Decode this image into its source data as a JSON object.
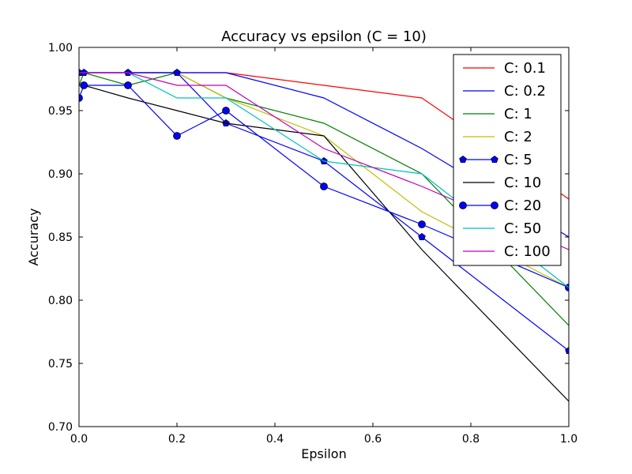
{
  "chart_data": {
    "type": "line",
    "title": "Accuracy vs epsilon (C = 10)",
    "xlabel": "Epsilon",
    "ylabel": "Accuracy",
    "xlim": [
      0.0,
      1.0
    ],
    "ylim": [
      0.7,
      1.0
    ],
    "xticks": [
      "0.0",
      "0.2",
      "0.4",
      "0.6",
      "0.8",
      "1.0"
    ],
    "yticks": [
      "0.70",
      "0.75",
      "0.80",
      "0.85",
      "0.90",
      "0.95",
      "1.00"
    ],
    "grid": false,
    "legend_position": "top-right",
    "x": [
      0.0,
      0.01,
      0.1,
      0.2,
      0.3,
      0.5,
      0.7,
      1.0
    ],
    "series": [
      {
        "name": "C: 0.1",
        "color": "#ff0000",
        "marker": "none",
        "values": [
          0.98,
          0.98,
          0.98,
          0.98,
          0.98,
          0.97,
          0.96,
          0.88
        ]
      },
      {
        "name": "C: 0.2",
        "color": "#0000ff",
        "marker": "none",
        "values": [
          0.98,
          0.98,
          0.98,
          0.98,
          0.98,
          0.96,
          0.92,
          0.85
        ]
      },
      {
        "name": "C: 1",
        "color": "#008000",
        "marker": "none",
        "values": [
          0.97,
          0.98,
          0.97,
          0.98,
          0.96,
          0.94,
          0.9,
          0.78
        ]
      },
      {
        "name": "C: 2",
        "color": "#bfbf00",
        "marker": "none",
        "values": [
          0.98,
          0.98,
          0.98,
          0.98,
          0.96,
          0.93,
          0.87,
          0.81
        ]
      },
      {
        "name": "C: 5",
        "color": "#0000ff",
        "marker": "pentagon",
        "values": [
          0.98,
          0.98,
          0.98,
          0.98,
          0.94,
          0.91,
          0.85,
          0.76
        ]
      },
      {
        "name": "C: 10",
        "color": "#000000",
        "marker": "none",
        "values": [
          0.97,
          0.97,
          0.96,
          0.95,
          0.94,
          0.93,
          0.84,
          0.72
        ]
      },
      {
        "name": "C: 20",
        "color": "#0000ff",
        "marker": "circle",
        "values": [
          0.96,
          0.97,
          0.97,
          0.93,
          0.95,
          0.89,
          0.86,
          0.81
        ]
      },
      {
        "name": "C: 50",
        "color": "#00bfbf",
        "marker": "none",
        "values": [
          0.98,
          0.98,
          0.98,
          0.96,
          0.96,
          0.91,
          0.9,
          0.81
        ]
      },
      {
        "name": "C: 100",
        "color": "#bf00bf",
        "marker": "none",
        "values": [
          0.98,
          0.98,
          0.98,
          0.97,
          0.97,
          0.92,
          0.89,
          0.84
        ]
      }
    ]
  }
}
